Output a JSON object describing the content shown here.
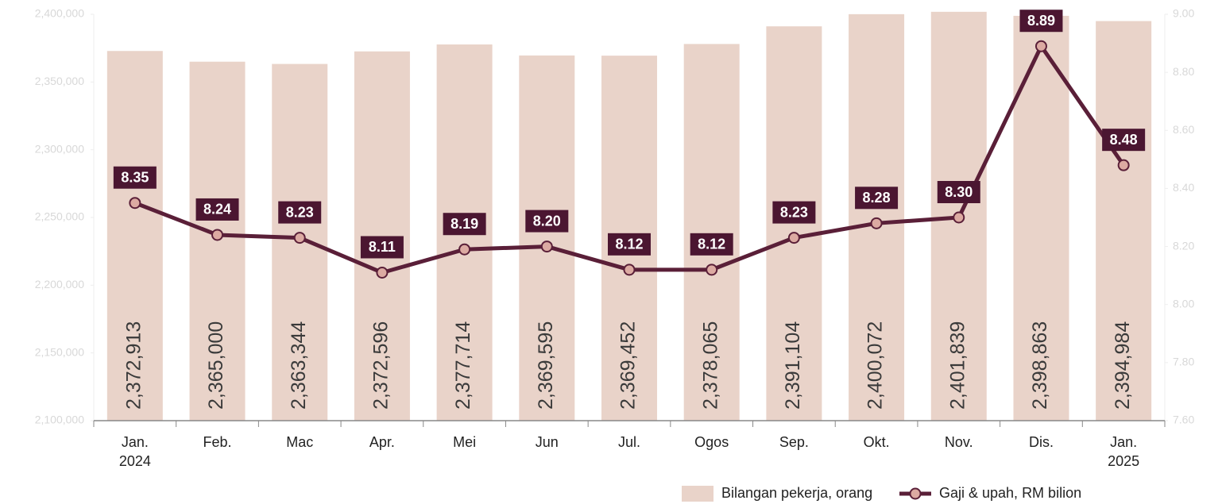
{
  "chart_data": {
    "type": "bar",
    "categories": [
      [
        "Jan.",
        "2024"
      ],
      [
        "Feb."
      ],
      [
        "Mac"
      ],
      [
        "Apr."
      ],
      [
        "Mei"
      ],
      [
        "Jun"
      ],
      [
        "Jul."
      ],
      [
        "Ogos"
      ],
      [
        "Sep."
      ],
      [
        "Okt."
      ],
      [
        "Nov."
      ],
      [
        "Dis."
      ],
      [
        "Jan.",
        "2025"
      ]
    ],
    "series": [
      {
        "name": "Bilangan pekerja, orang",
        "type": "bar",
        "color": "#e9d3c9",
        "values": [
          2372913,
          2365000,
          2363344,
          2372596,
          2377714,
          2369595,
          2369452,
          2378065,
          2391104,
          2400072,
          2401839,
          2398863,
          2394984
        ],
        "value_labels": [
          "2,372,913",
          "2,365,000",
          "2,363,344",
          "2,372,596",
          "2,377,714",
          "2,369,595",
          "2,369,452",
          "2,378,065",
          "2,391,104",
          "2,400,072",
          "2,401,839",
          "2,398,863",
          "2,394,984"
        ]
      },
      {
        "name": "Gaji & upah, RM bilion",
        "type": "line",
        "axis": "y2",
        "color": "#5a1f38",
        "marker_color": "#dcaaa2",
        "values": [
          8.35,
          8.24,
          8.23,
          8.11,
          8.19,
          8.2,
          8.12,
          8.12,
          8.23,
          8.28,
          8.3,
          8.89,
          8.48
        ],
        "value_labels": [
          "8.35",
          "8.24",
          "8.23",
          "8.11",
          "8.19",
          "8.20",
          "8.12",
          "8.12",
          "8.23",
          "8.28",
          "8.30",
          "8.89",
          "8.48"
        ]
      }
    ],
    "ylim": [
      2100000,
      2400000
    ],
    "yticks": [
      {
        "value": 2100000,
        "label": "2,100,000"
      },
      {
        "value": 2150000,
        "label": "2,150,000"
      },
      {
        "value": 2200000,
        "label": "2,200,000"
      },
      {
        "value": 2250000,
        "label": "2,250,000"
      },
      {
        "value": 2300000,
        "label": "2,300,000"
      },
      {
        "value": 2350000,
        "label": "2,350,000"
      },
      {
        "value": 2400000,
        "label": "2,400,000"
      }
    ],
    "y2lim": [
      7.6,
      9.0
    ],
    "y2ticks": [
      {
        "value": 7.6,
        "label": "7.60"
      },
      {
        "value": 7.8,
        "label": "7.80"
      },
      {
        "value": 8.0,
        "label": "8.00"
      },
      {
        "value": 8.2,
        "label": "8.20"
      },
      {
        "value": 8.4,
        "label": "8.40"
      },
      {
        "value": 8.6,
        "label": "8.60"
      },
      {
        "value": 8.8,
        "label": "8.80"
      },
      {
        "value": 9.0,
        "label": "9.00"
      }
    ],
    "legend": "bottom-right"
  }
}
